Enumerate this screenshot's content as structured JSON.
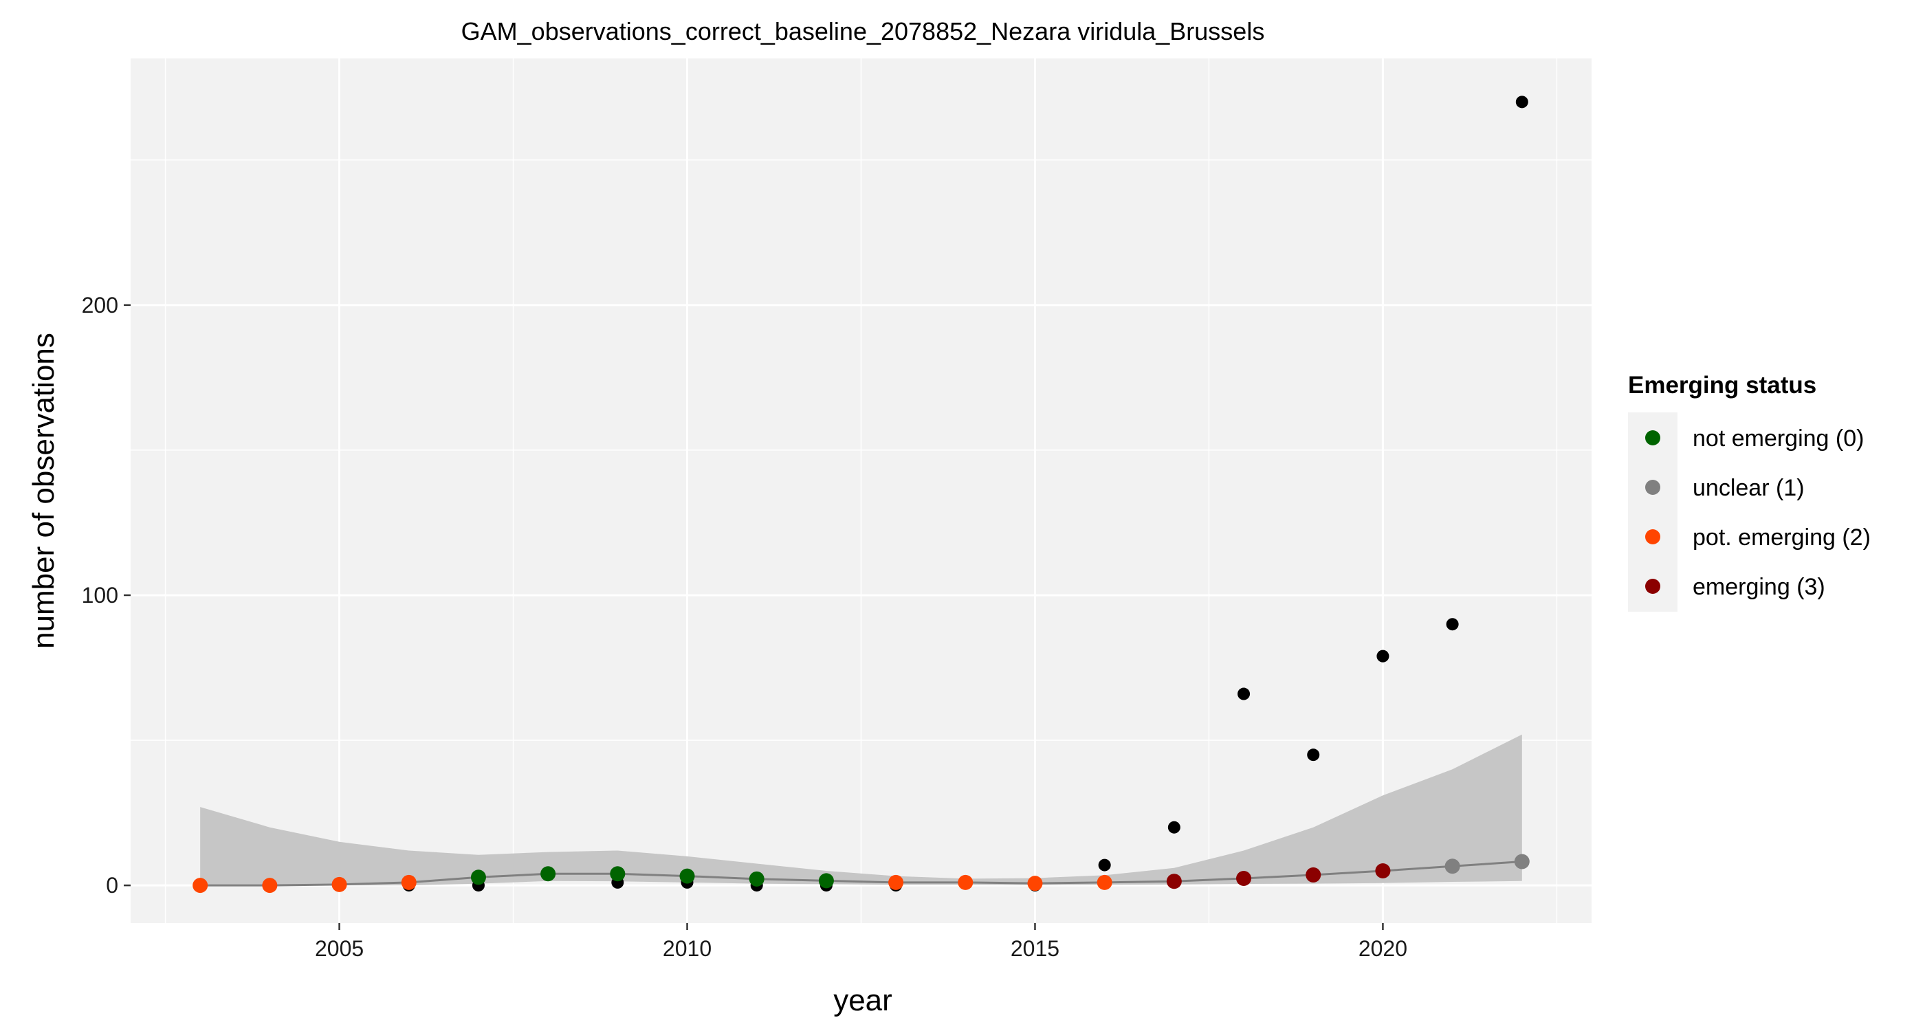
{
  "chart_data": {
    "type": "scatter",
    "title": "GAM_observations_correct_baseline_2078852_Nezara viridula_Brussels",
    "xlabel": "year",
    "ylabel": "number of observations",
    "xlim": [
      2002.0,
      2023.0
    ],
    "ylim": [
      -13,
      285
    ],
    "x_ticks": [
      2005,
      2010,
      2015,
      2020
    ],
    "x_tick_labels": [
      "2005",
      "2010",
      "2015",
      "2020"
    ],
    "y_ticks": [
      0,
      100,
      200
    ],
    "y_tick_labels": [
      "0",
      "100",
      "200"
    ],
    "grid": true,
    "panel_background": "#f2f2f2",
    "observed": {
      "color": "#000000",
      "x": [
        2003,
        2004,
        2005,
        2006,
        2007,
        2008,
        2009,
        2010,
        2011,
        2012,
        2013,
        2014,
        2015,
        2016,
        2017,
        2018,
        2019,
        2020,
        2021,
        2022
      ],
      "y": [
        0,
        0,
        0,
        0,
        0,
        4,
        1,
        1,
        0,
        0,
        0,
        1,
        0,
        7,
        20,
        66,
        45,
        79,
        90,
        270
      ]
    },
    "fit": {
      "color": "#808080",
      "band_color": "#c6c6c6",
      "x": [
        2003,
        2004,
        2005,
        2006,
        2007,
        2008,
        2009,
        2010,
        2011,
        2012,
        2013,
        2014,
        2015,
        2016,
        2017,
        2018,
        2019,
        2020,
        2021,
        2022
      ],
      "y": [
        0,
        0,
        0.3,
        1,
        2.8,
        4,
        4,
        3.2,
        2.2,
        1.6,
        1,
        1,
        0.7,
        1,
        1.4,
        2.4,
        3.6,
        5,
        6.6,
        8.2
      ],
      "lower": [
        0,
        0,
        0,
        0,
        0.6,
        1.5,
        1.4,
        1,
        0.6,
        0.4,
        0.2,
        0.2,
        0.1,
        0.2,
        0.3,
        0.5,
        0.6,
        0.8,
        1.2,
        1.5
      ],
      "upper": [
        27,
        20,
        15,
        12,
        10.5,
        11.5,
        12,
        10,
        7.5,
        5,
        3.2,
        2.3,
        2.5,
        3.5,
        6,
        12,
        20,
        31,
        40,
        52
      ],
      "status": [
        2,
        2,
        2,
        2,
        0,
        0,
        0,
        0,
        0,
        0,
        2,
        2,
        2,
        2,
        3,
        3,
        3,
        3,
        1,
        1
      ]
    },
    "legend": {
      "title": "Emerging status",
      "placement": "right",
      "entries": [
        {
          "label": "not emerging (0)",
          "color": "#006400"
        },
        {
          "label": "unclear (1)",
          "color": "#808080"
        },
        {
          "label": "pot. emerging (2)",
          "color": "#ff4500"
        },
        {
          "label": "emerging (3)",
          "color": "#8b0000"
        }
      ]
    }
  }
}
